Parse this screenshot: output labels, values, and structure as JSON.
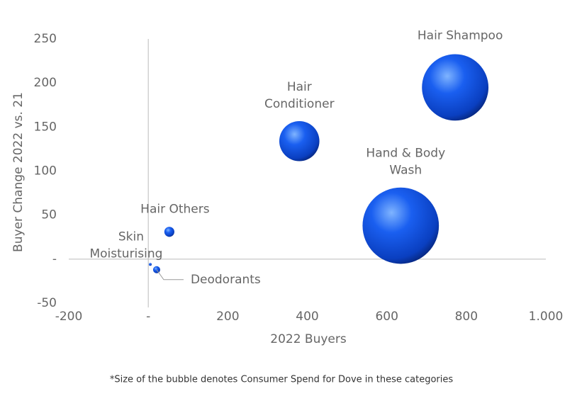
{
  "chart_data": {
    "type": "bubble",
    "x_label": "2022 Buyers",
    "y_label": "Buyer Change 2022 vs. 21",
    "footnote": "*Size of the bubble denotes Consumer Spend for Dove in these categories",
    "labels": [
      [
        "Hair Shampoo"
      ],
      [
        "Hair",
        "Conditioner"
      ],
      [
        "Hand & Body",
        "Wash"
      ],
      [
        "Hair Others"
      ],
      [
        "Skin",
        "Moisturising"
      ],
      [
        "Deodorants"
      ]
    ],
    "x": [
      772,
      380,
      635,
      53,
      5,
      21
    ],
    "values": [
      195,
      134,
      38,
      31,
      -6,
      -12
    ],
    "sizes": [
      2200,
      800,
      2900,
      50,
      4,
      25
    ],
    "color": "#1a5ff0",
    "xlim": [
      -200,
      1000
    ],
    "xticks": [
      -200,
      {
        "value": 0,
        "label": "-"
      },
      200,
      400,
      600,
      800,
      {
        "value": 1000,
        "label": "1.000"
      }
    ],
    "ylim": [
      -50,
      250
    ],
    "yticks": [
      -50,
      {
        "value": 0,
        "label": "-"
      },
      50,
      100,
      150,
      200,
      250
    ]
  }
}
